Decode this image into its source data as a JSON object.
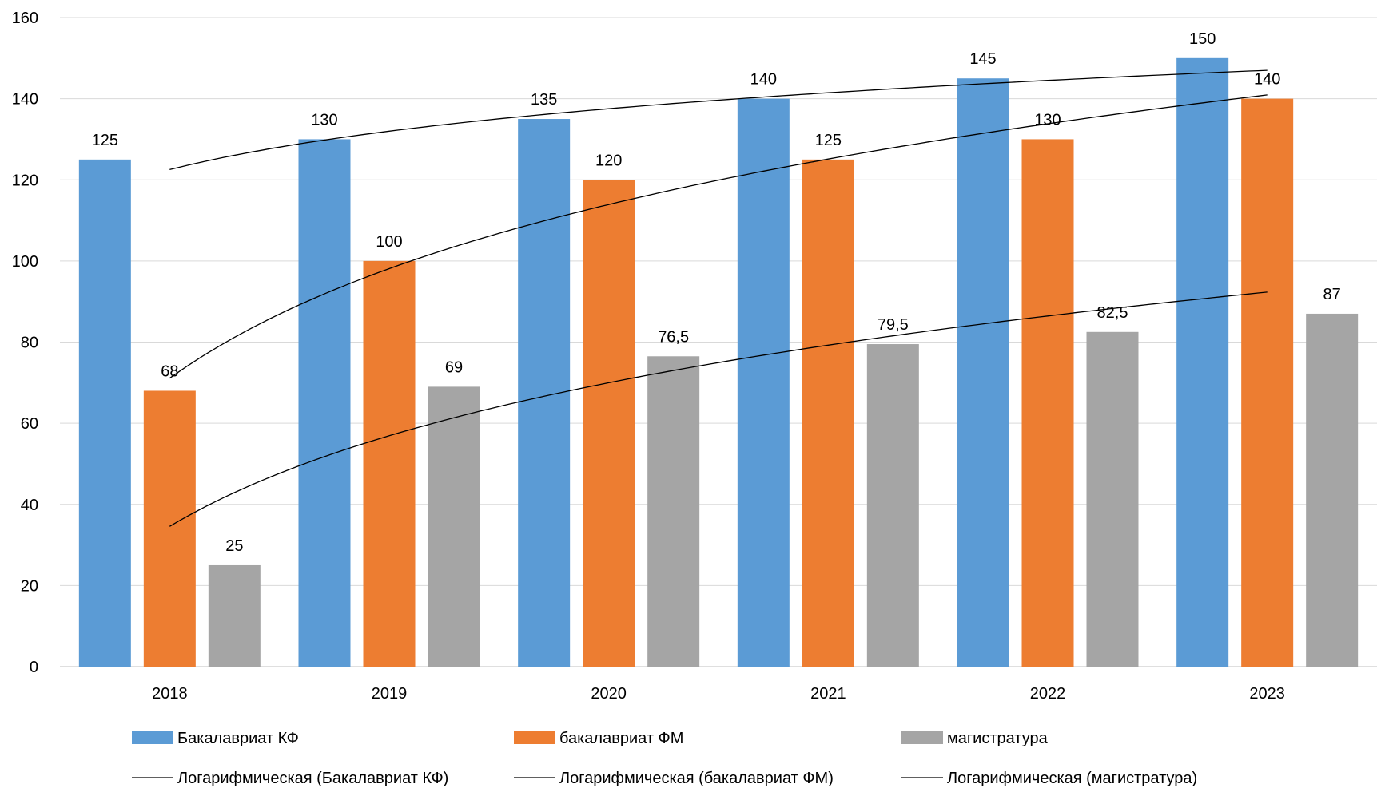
{
  "chart_data": {
    "type": "bar",
    "title": "",
    "xlabel": "",
    "ylabel": "",
    "categories": [
      "2018",
      "2019",
      "2020",
      "2021",
      "2022",
      "2023"
    ],
    "ylim": [
      0,
      160
    ],
    "yticks": [
      0,
      20,
      40,
      60,
      80,
      100,
      120,
      140,
      160
    ],
    "grid": true,
    "legend_position": "bottom",
    "series": [
      {
        "name": "Бакалавриат КФ",
        "color": "#5b9bd5",
        "values": [
          125,
          130,
          135,
          140,
          145,
          150
        ],
        "labels": [
          "125",
          "130",
          "135",
          "140",
          "145",
          "150"
        ]
      },
      {
        "name": "бакалавриат ФМ",
        "color": "#ed7d31",
        "values": [
          68,
          100,
          120,
          125,
          130,
          140
        ],
        "labels": [
          "68",
          "100",
          "120",
          "125",
          "130",
          "140"
        ]
      },
      {
        "name": "магистратура",
        "color": "#a5a5a5",
        "values": [
          25,
          69,
          76.5,
          79.5,
          82.5,
          87
        ],
        "labels": [
          "25",
          "69",
          "76,5",
          "79,5",
          "82,5",
          "87"
        ]
      }
    ],
    "trendlines": [
      {
        "name": "Логарифмическая (Бакалавриат КФ)",
        "type": "logarithmic",
        "series": 0,
        "color": "#000000"
      },
      {
        "name": "Логарифмическая (бакалавриат ФМ)",
        "type": "logarithmic",
        "series": 1,
        "color": "#000000"
      },
      {
        "name": "Логарифмическая (магистратура)",
        "type": "logarithmic",
        "series": 2,
        "color": "#000000"
      }
    ]
  }
}
